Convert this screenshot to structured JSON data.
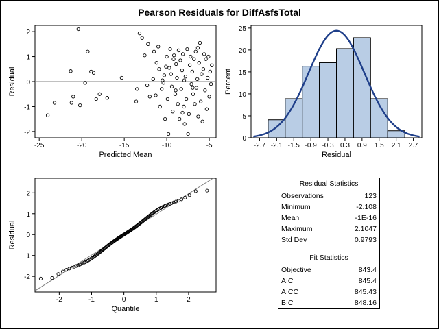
{
  "title": "Pearson Residuals for DiffAsfsTotal",
  "chart_data": [
    {
      "type": "scatter",
      "name": "residual-vs-predicted",
      "xlabel": "Predicted Mean",
      "ylabel": "Residual",
      "xlim": [
        -25.5,
        -4.2
      ],
      "ylim": [
        -2.25,
        2.25
      ],
      "xticks": [
        "-25",
        "-20",
        "-15",
        "-10",
        "-5"
      ],
      "xtick_values": [
        -25,
        -20,
        -15,
        -10,
        -5
      ],
      "yticks": [
        "-2",
        "-1",
        "0",
        "1",
        "2"
      ],
      "ytick_values": [
        -2,
        -1,
        0,
        1,
        2
      ],
      "reference_line_y": 0,
      "points": [
        [
          -24.0,
          -1.35
        ],
        [
          -23.2,
          -0.85
        ],
        [
          -21.2,
          -0.85
        ],
        [
          -21.0,
          -0.6
        ],
        [
          -21.3,
          0.42
        ],
        [
          -20.4,
          2.1
        ],
        [
          -20.2,
          -0.95
        ],
        [
          -19.6,
          -0.05
        ],
        [
          -19.3,
          1.2
        ],
        [
          -18.9,
          0.4
        ],
        [
          -18.6,
          0.35
        ],
        [
          -18.3,
          -0.7
        ],
        [
          -17.9,
          -0.5
        ],
        [
          -17.0,
          -0.65
        ],
        [
          -15.3,
          0.15
        ],
        [
          -13.6,
          -0.8
        ],
        [
          -13.5,
          -0.3
        ],
        [
          -13.2,
          1.93
        ],
        [
          -12.9,
          1.75
        ],
        [
          -12.6,
          1.05
        ],
        [
          -12.2,
          1.5
        ],
        [
          -12.0,
          -0.6
        ],
        [
          -11.6,
          0.1
        ],
        [
          -11.5,
          1.2
        ],
        [
          -11.2,
          0.75
        ],
        [
          -11.0,
          1.4
        ],
        [
          -10.9,
          0.5
        ],
        [
          -10.8,
          -1.0
        ],
        [
          -10.6,
          -0.3
        ],
        [
          -10.5,
          0.05
        ],
        [
          -10.3,
          0.25
        ],
        [
          -10.2,
          -1.5
        ],
        [
          -10.1,
          0.6
        ],
        [
          -10.0,
          1.0
        ],
        [
          -9.9,
          -0.7
        ],
        [
          -9.8,
          -2.1
        ],
        [
          -9.6,
          1.3
        ],
        [
          -9.5,
          0.3
        ],
        [
          -9.4,
          -0.2
        ],
        [
          -9.3,
          -1.2
        ],
        [
          -9.2,
          0.9
        ],
        [
          -9.0,
          -0.5
        ],
        [
          -8.9,
          0.7
        ],
        [
          -8.8,
          0.15
        ],
        [
          -8.7,
          -0.9
        ],
        [
          -8.6,
          1.25
        ],
        [
          -8.5,
          -1.5
        ],
        [
          -8.4,
          0.85
        ],
        [
          -8.3,
          -0.3
        ],
        [
          -8.2,
          0.45
        ],
        [
          -8.1,
          1.1
        ],
        [
          -8.0,
          -1.0
        ],
        [
          -7.9,
          -1.7
        ],
        [
          -7.8,
          0.2
        ],
        [
          -7.7,
          -0.7
        ],
        [
          -7.6,
          1.3
        ],
        [
          -7.5,
          -2.1
        ],
        [
          -7.4,
          -1.3
        ],
        [
          -7.3,
          0.65
        ],
        [
          -7.2,
          1.0
        ],
        [
          -7.1,
          -0.1
        ],
        [
          -7.0,
          0.4
        ],
        [
          -6.9,
          -0.5
        ],
        [
          -6.8,
          0.9
        ],
        [
          -6.7,
          -0.9
        ],
        [
          -6.6,
          1.2
        ],
        [
          -6.5,
          -0.25
        ],
        [
          -6.4,
          0.1
        ],
        [
          -6.3,
          -1.4
        ],
        [
          -6.2,
          0.75
        ],
        [
          -6.1,
          1.55
        ],
        [
          -6.0,
          -0.8
        ],
        [
          -5.9,
          0.3
        ],
        [
          -5.8,
          -1.6
        ],
        [
          -5.7,
          0.5
        ],
        [
          -5.6,
          1.1
        ],
        [
          -5.5,
          -0.35
        ],
        [
          -5.4,
          0.9
        ],
        [
          -5.3,
          -1.1
        ],
        [
          -5.2,
          0.15
        ],
        [
          -5.1,
          1.0
        ],
        [
          -5.0,
          -0.6
        ],
        [
          -4.9,
          0.4
        ],
        [
          -4.8,
          -0.1
        ],
        [
          -4.7,
          0.65
        ],
        [
          -10.4,
          -0.05
        ],
        [
          -9.7,
          0.55
        ],
        [
          -8.95,
          -0.35
        ],
        [
          -7.95,
          0.05
        ],
        [
          -6.95,
          -0.25
        ],
        [
          -11.3,
          -0.55
        ],
        [
          -12.3,
          -0.15
        ],
        [
          -9.15,
          1.05
        ],
        [
          -8.15,
          -1.25
        ],
        [
          -6.35,
          1.35
        ]
      ]
    },
    {
      "type": "bar",
      "name": "residual-histogram",
      "xlabel": "Residual",
      "ylabel": "Percent",
      "xlim": [
        -3.0,
        3.0
      ],
      "ylim": [
        0,
        25.6
      ],
      "xticks": [
        "-2.7",
        "-2.1",
        "-1.5",
        "-0.9",
        "-0.3",
        "0.3",
        "0.9",
        "1.5",
        "2.1",
        "2.7"
      ],
      "xtick_values": [
        -2.7,
        -2.1,
        -1.5,
        -0.9,
        -0.3,
        0.3,
        0.9,
        1.5,
        2.1,
        2.7
      ],
      "yticks": [
        "0",
        "5",
        "10",
        "15",
        "20",
        "25"
      ],
      "ytick_values": [
        0,
        5,
        10,
        15,
        20,
        25
      ],
      "bin_width": 0.6,
      "bin_midpoints": [
        -2.1,
        -1.5,
        -0.9,
        -0.3,
        0.3,
        0.9,
        1.5,
        2.1
      ],
      "values": [
        4.1,
        8.9,
        16.3,
        17.1,
        20.3,
        22.8,
        8.9,
        1.6
      ],
      "overlay": {
        "type": "normal_density",
        "mean": 0,
        "std": 0.9793,
        "peak_percent": 24.4
      }
    },
    {
      "type": "scatter",
      "name": "qq-plot",
      "xlabel": "Quantile",
      "ylabel": "Residual",
      "xlim": [
        -2.75,
        2.85
      ],
      "ylim": [
        -2.75,
        2.7
      ],
      "xticks": [
        "-2",
        "-1",
        "0",
        "1",
        "2"
      ],
      "xtick_values": [
        -2,
        -1,
        0,
        1,
        2
      ],
      "yticks": [
        "-2",
        "-1",
        "0",
        "1",
        "2"
      ],
      "ytick_values": [
        -2,
        -1,
        0,
        1,
        2
      ],
      "reference_line": {
        "slope": 0.9793,
        "intercept": 0
      },
      "n_points": 123,
      "points_generated_from": "normal quantiles with wavy offset"
    }
  ],
  "stats": {
    "residual_header": "Residual Statistics",
    "residual_rows": [
      {
        "label": "Observations",
        "value": "123"
      },
      {
        "label": "Minimum",
        "value": "-2.108"
      },
      {
        "label": "Mean",
        "value": "-1E-16"
      },
      {
        "label": "Maximum",
        "value": "2.1047"
      },
      {
        "label": "Std Dev",
        "value": "0.9793"
      }
    ],
    "fit_header": "Fit Statistics",
    "fit_rows": [
      {
        "label": "Objective",
        "value": "843.4"
      },
      {
        "label": "AIC",
        "value": "845.4"
      },
      {
        "label": "AICC",
        "value": "845.43"
      },
      {
        "label": "BIC",
        "value": "848.16"
      }
    ]
  },
  "colors": {
    "bar_fill": "#b9cde5",
    "curve": "#1f3f8a",
    "ref_line": "#808080",
    "axis": "#000000"
  }
}
